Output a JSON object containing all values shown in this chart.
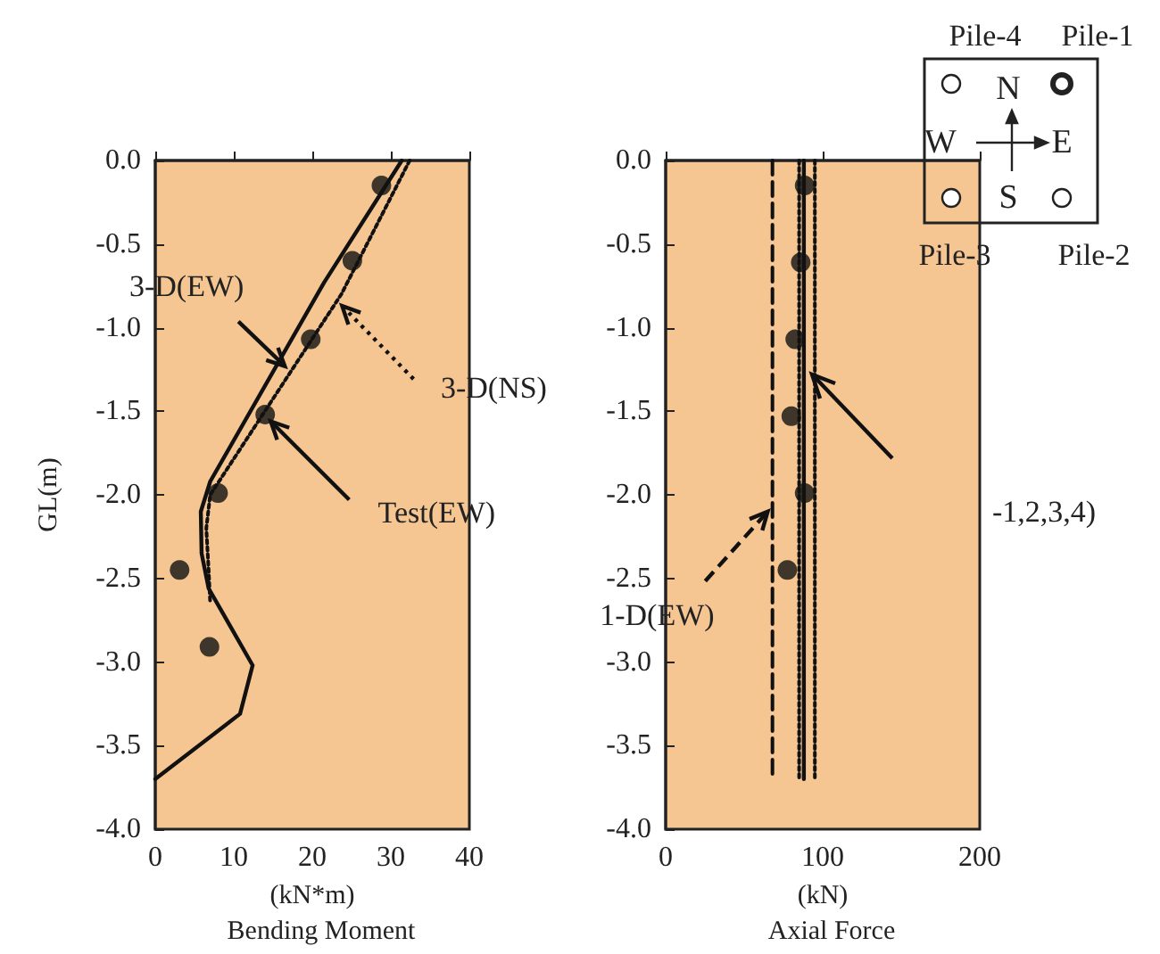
{
  "chart_data": [
    {
      "type": "line",
      "title": "Bending Moment",
      "xlabel": "(kN*m)",
      "ylabel": "GL(m)",
      "xlim": [
        0,
        40
      ],
      "xticks": [
        0,
        10,
        20,
        30,
        40
      ],
      "ylim": [
        -4,
        0
      ],
      "yticks": [
        {
          "value": 0,
          "label": "0.0"
        },
        {
          "value": -0.5,
          "label": "-0.5"
        },
        {
          "value": -1,
          "label": "-1.0"
        },
        {
          "value": -1.5,
          "label": "-1.5"
        },
        {
          "value": -2,
          "label": "-2.0"
        },
        {
          "value": -2.5,
          "label": "-2.5"
        },
        {
          "value": -3,
          "label": "-3.0"
        },
        {
          "value": -3.5,
          "label": "-3.5"
        },
        {
          "value": -4,
          "label": "-4.0"
        }
      ],
      "grid": false,
      "series": [
        {
          "type": "line",
          "color": "#111111",
          "line_style": "solid",
          "marker": "none",
          "x": [
            31.4,
            21.5,
            7.0,
            5.8,
            5.9,
            6.8,
            12.4,
            10.8,
            0
          ],
          "values": [
            0,
            -0.73,
            -1.92,
            -2.1,
            -2.35,
            -2.56,
            -3.02,
            -3.31,
            -3.7
          ]
        },
        {
          "type": "line",
          "color": "#111111",
          "line_style": "dotted",
          "marker": "none",
          "x": [
            32.4,
            23.7,
            7.0,
            6.5,
            6.8,
            7.0
          ],
          "values": [
            0,
            -0.8,
            -2.0,
            -2.2,
            -2.45,
            -2.65
          ]
        },
        {
          "type": "scatter",
          "color": "#111111",
          "marker": "circle",
          "x": [
            28.8,
            25.1,
            19.8,
            14.0,
            8.0,
            3.1,
            6.9
          ],
          "values": [
            -0.15,
            -0.6,
            -1.07,
            -1.52,
            -1.99,
            -2.45,
            -2.91
          ]
        }
      ],
      "annotations": [
        {
          "text": "3-D(EW)",
          "x": 16.5,
          "y": -1.23
        },
        {
          "text": "3-D(NS)",
          "x": 23.8,
          "y": -0.87
        },
        {
          "text": "Test(EW)",
          "x": 14.7,
          "y": -1.56
        }
      ]
    },
    {
      "type": "line",
      "title": "Axial Force",
      "xlabel": "(kN)",
      "xlim": [
        0,
        200
      ],
      "xticks": [
        0,
        100,
        200
      ],
      "ylim": [
        -4,
        0
      ],
      "yticks": [
        {
          "value": 0,
          "label": "0.0"
        },
        {
          "value": -0.5,
          "label": "-0.5"
        },
        {
          "value": -1,
          "label": "-1.0"
        },
        {
          "value": -1.5,
          "label": "-1.5"
        },
        {
          "value": -2,
          "label": "-2.0"
        },
        {
          "value": -2.5,
          "label": "-2.5"
        },
        {
          "value": -3,
          "label": "-3.0"
        },
        {
          "value": -3.5,
          "label": "-3.5"
        },
        {
          "value": -4,
          "label": "-4.0"
        }
      ],
      "grid": false,
      "series": [
        {
          "type": "line",
          "color": "#111111",
          "line_style": "solid",
          "marker": "none",
          "x": [
            88,
            88
          ],
          "values": [
            0,
            -3.7
          ]
        },
        {
          "type": "line",
          "color": "#111111",
          "line_style": "dotted",
          "marker": "none",
          "x": [
            95,
            95
          ],
          "values": [
            0,
            -3.7
          ]
        },
        {
          "type": "line",
          "color": "#111111",
          "line_style": "dotted",
          "marker": "none",
          "x": [
            85,
            85
          ],
          "values": [
            0,
            -3.7
          ]
        },
        {
          "type": "line",
          "color": "#111111",
          "line_style": "dashed",
          "marker": "none",
          "x": [
            68,
            68
          ],
          "values": [
            0,
            -3.7
          ]
        },
        {
          "type": "scatter",
          "color": "#111111",
          "marker": "circle",
          "x": [
            88.5,
            86,
            82.5,
            80,
            88.5,
            77.5
          ],
          "values": [
            -0.15,
            -0.61,
            -1.07,
            -1.53,
            -1.99,
            -2.45
          ]
        }
      ],
      "annotations": [
        {
          "text": "1-D(EW)",
          "x": 65,
          "y": -2.1
        },
        "-1,2,3,4)",
        "Pile-4",
        "Pile-1",
        "Pile-3",
        "Pile-2",
        "N",
        "W",
        "E",
        "S"
      ]
    }
  ]
}
